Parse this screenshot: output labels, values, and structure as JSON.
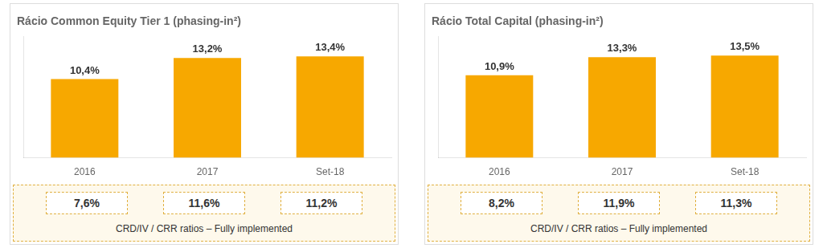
{
  "chart_data": [
    {
      "type": "bar",
      "title": "Rácio Common Equity Tier 1 (phasing-in²)",
      "categories": [
        "2016",
        "2017",
        "Set-18"
      ],
      "values": [
        10.4,
        13.2,
        13.4
      ],
      "value_labels": [
        "10,4%",
        "13,2%",
        "13,4%"
      ],
      "data_labels": true,
      "color": "#F7A800",
      "ylim": [
        0,
        16
      ],
      "tick_labels": "x",
      "annotations": [
        "7,6%",
        "11,6%",
        "11,2%"
      ],
      "subtitle": "CRD/IV / CRR ratios – Fully implemented"
    },
    {
      "type": "bar",
      "title": "Rácio Total Capital (phasing-in²)",
      "categories": [
        "2016",
        "2017",
        "Set-18"
      ],
      "values": [
        10.9,
        13.3,
        13.5
      ],
      "value_labels": [
        "10,9%",
        "13,3%",
        "13,5%"
      ],
      "data_labels": true,
      "color": "#F7A800",
      "ylim": [
        0,
        16
      ],
      "tick_labels": "x",
      "annotations": [
        "8,2%",
        "11,9%",
        "11,3%"
      ],
      "subtitle": "CRD/IV / CRR ratios – Fully implemented"
    }
  ]
}
